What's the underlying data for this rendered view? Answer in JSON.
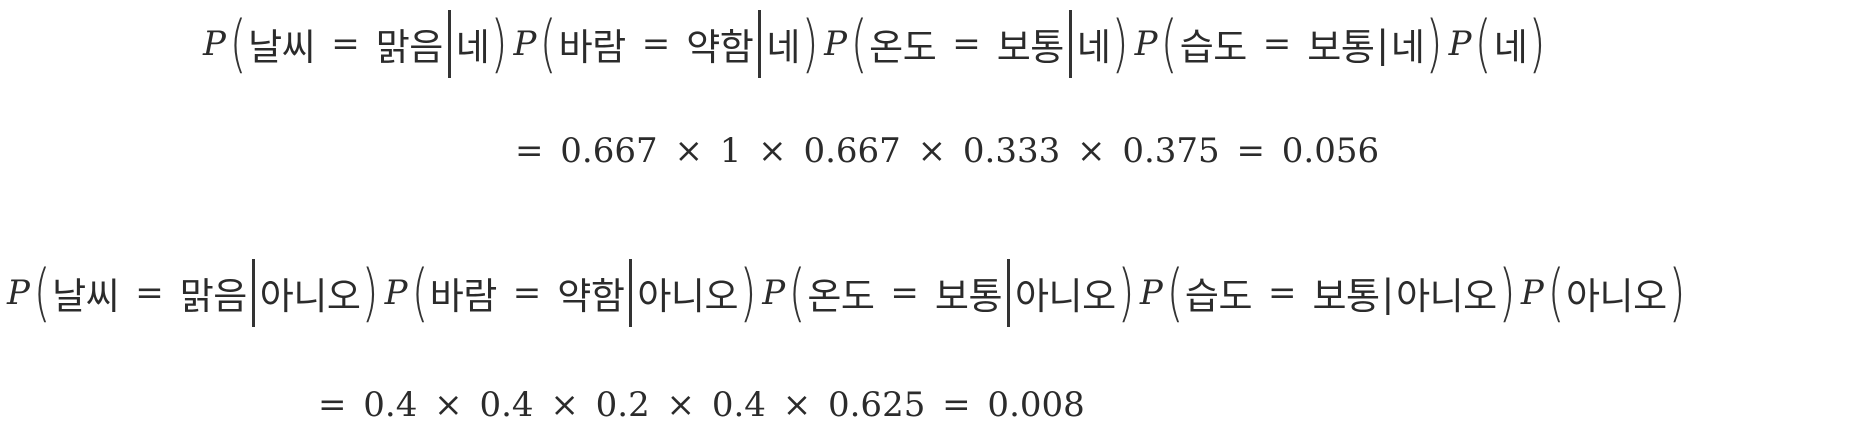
{
  "line1": {
    "prob_symbol": "P",
    "terms": [
      {
        "var": "날씨",
        "op": "=",
        "value": "맑음",
        "cond": "네"
      },
      {
        "var": "바람",
        "op": "=",
        "value": "약함",
        "cond": "네"
      },
      {
        "var": "온도",
        "op": "=",
        "value": "보통",
        "cond": "네"
      },
      {
        "var": "습도",
        "op": "=",
        "value": "보통",
        "cond": "네"
      }
    ],
    "prior": "네"
  },
  "line2": {
    "calculation": "= 0.667 × 1 × 0.667 × 0.333 × 0.375 = 0.056"
  },
  "line3": {
    "prob_symbol": "P",
    "terms": [
      {
        "var": "날씨",
        "op": "=",
        "value": "맑음",
        "cond": "아니오"
      },
      {
        "var": "바람",
        "op": "=",
        "value": "약함",
        "cond": "아니오"
      },
      {
        "var": "온도",
        "op": "=",
        "value": "보통",
        "cond": "아니오"
      },
      {
        "var": "습도",
        "op": "=",
        "value": "보통",
        "cond": "아니오"
      }
    ],
    "prior": "아니오"
  },
  "line4": {
    "calculation": "= 0.4 × 0.4 × 0.2 × 0.4 × 0.625 = 0.008"
  }
}
